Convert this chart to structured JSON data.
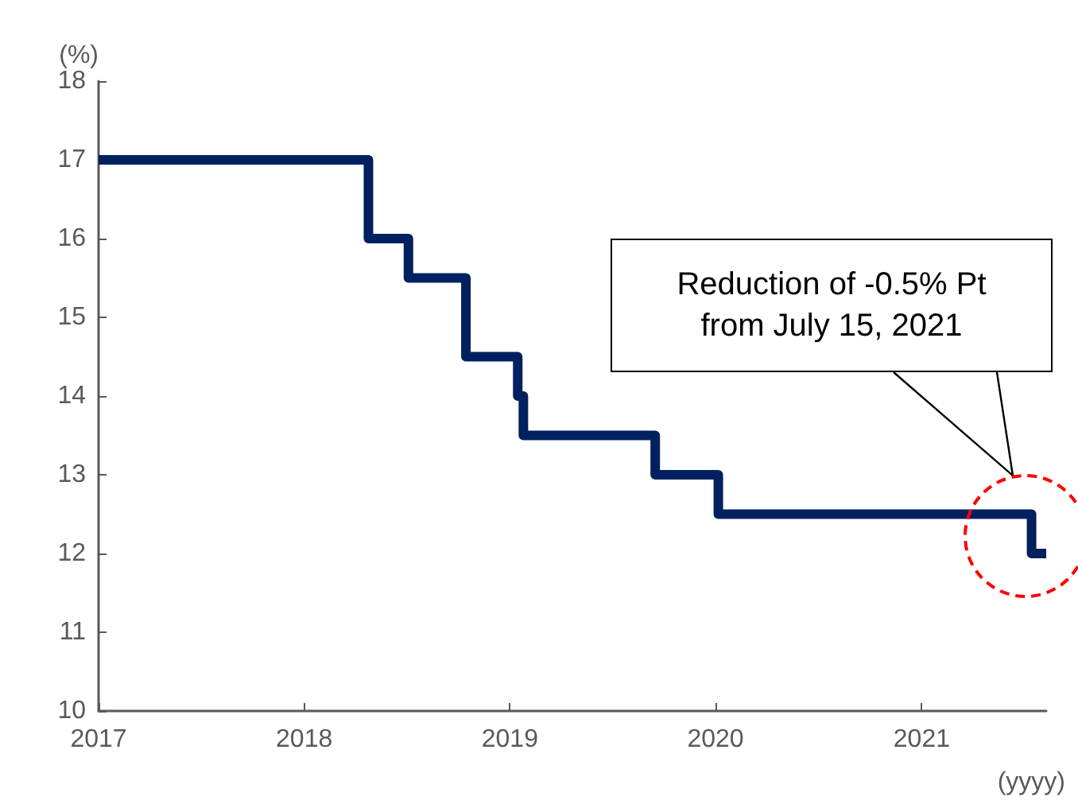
{
  "chart_data": {
    "type": "step",
    "ylabel": "(%)",
    "xlabel": "(yyyy)",
    "x": [
      "2017-01-01",
      "2018-04-25",
      "2018-07-05",
      "2018-10-15",
      "2019-01-15",
      "2019-01-25",
      "2019-09-16",
      "2020-01-06",
      "2021-07-15",
      "2021-08-10"
    ],
    "series": [
      {
        "color": "#002060",
        "values": [
          17,
          16,
          15.5,
          14.5,
          14,
          13.5,
          13,
          12.5,
          12,
          12
        ]
      }
    ],
    "xlim": [
      "2017-01-01",
      "2021-08-10"
    ],
    "xticks": [
      "2017",
      "2018",
      "2019",
      "2020",
      "2021"
    ],
    "ylim": [
      10,
      18
    ],
    "yticks": [
      10,
      11,
      12,
      13,
      14,
      15,
      16,
      17,
      18
    ],
    "grid": false,
    "marker": "none",
    "line_style": "solid",
    "annotations": [
      "Reduction of -0.5% Pt\nfrom July 15, 2021"
    ]
  }
}
